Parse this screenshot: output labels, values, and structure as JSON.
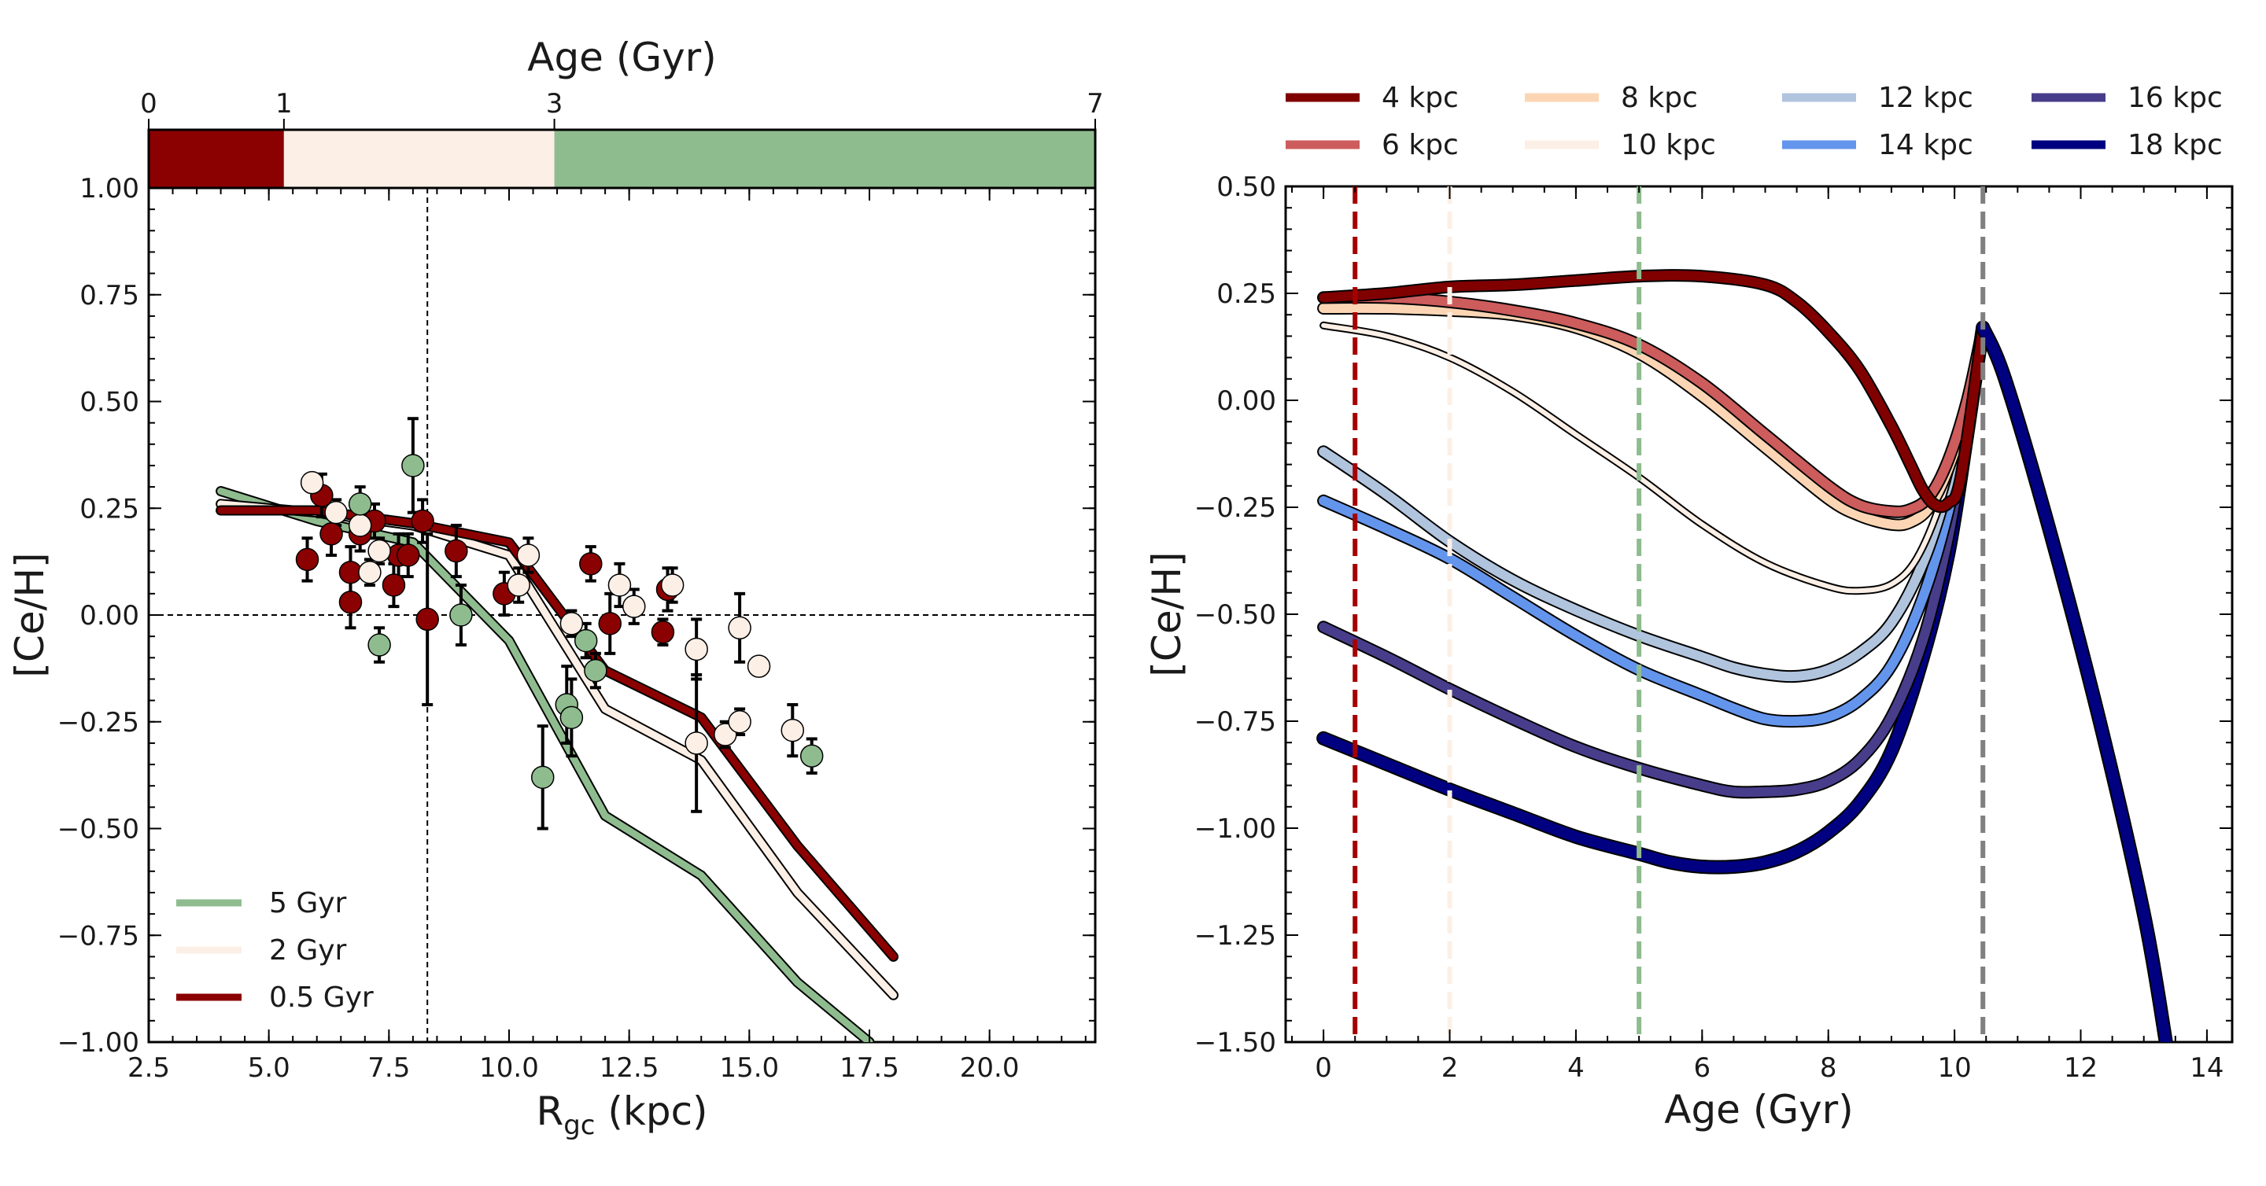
{
  "chart_data": [
    {
      "type": "line",
      "panel": "left",
      "xlabel": "R",
      "xlabel_sub": "gc",
      "xlabel_unit": " (kpc)",
      "ylabel": "[Ce/H]",
      "xlim": [
        2.5,
        22.2
      ],
      "ylim": [
        -1.0,
        1.0
      ],
      "x_ticks": [
        "2.5",
        "5.0",
        "7.5",
        "10.0",
        "12.5",
        "15.0",
        "17.5",
        "20.0"
      ],
      "y_ticks": [
        "−1.00",
        "−0.75",
        "−0.50",
        "−0.25",
        "0.00",
        "0.25",
        "0.50",
        "0.75",
        "1.00"
      ],
      "top_axis": {
        "label": "Age (Gyr)",
        "ticks": [
          "0",
          "1",
          "3",
          "7"
        ],
        "bands": [
          {
            "from": 0,
            "to": 1,
            "color": "#8b0000"
          },
          {
            "from": 1,
            "to": 3,
            "color": "#fcefe6"
          },
          {
            "from": 3,
            "to": 7,
            "color": "#8fbc8f"
          }
        ]
      },
      "reference_lines": {
        "solar_radius": 8.3,
        "zero": 0.0
      },
      "series": [
        {
          "name": "5 Gyr",
          "color": "#8fbc8f",
          "x": [
            4,
            6,
            8,
            10,
            12,
            14,
            16,
            17.5
          ],
          "y": [
            0.29,
            0.22,
            0.17,
            -0.06,
            -0.47,
            -0.61,
            -0.86,
            -1.0
          ]
        },
        {
          "name": "2 Gyr",
          "color": "#fcefe6",
          "x": [
            4,
            6,
            8,
            10,
            12,
            14,
            16,
            18
          ],
          "y": [
            0.26,
            0.24,
            0.21,
            0.14,
            -0.22,
            -0.34,
            -0.65,
            -0.89
          ]
        },
        {
          "name": "0.5 Gyr",
          "color": "#8b0000",
          "x": [
            4,
            6,
            8,
            10,
            12,
            14,
            16,
            18
          ],
          "y": [
            0.245,
            0.245,
            0.215,
            0.17,
            -0.13,
            -0.24,
            -0.54,
            -0.8
          ]
        }
      ],
      "points": [
        {
          "x": 5.8,
          "y": 0.13,
          "err": 0.05,
          "group": "red"
        },
        {
          "x": 6.1,
          "y": 0.28,
          "err": 0.05,
          "group": "red"
        },
        {
          "x": 6.3,
          "y": 0.19,
          "err": 0.05,
          "group": "red"
        },
        {
          "x": 6.7,
          "y": 0.1,
          "err": 0.06,
          "group": "red"
        },
        {
          "x": 6.7,
          "y": 0.03,
          "err": 0.06,
          "group": "red"
        },
        {
          "x": 6.9,
          "y": 0.19,
          "err": 0.04,
          "group": "red"
        },
        {
          "x": 7.2,
          "y": 0.22,
          "err": 0.04,
          "group": "red"
        },
        {
          "x": 7.6,
          "y": 0.07,
          "err": 0.05,
          "group": "red"
        },
        {
          "x": 7.7,
          "y": 0.14,
          "err": 0.05,
          "group": "red"
        },
        {
          "x": 7.9,
          "y": 0.14,
          "err": 0.05,
          "group": "red"
        },
        {
          "x": 8.2,
          "y": 0.22,
          "err": 0.05,
          "group": "red"
        },
        {
          "x": 8.3,
          "y": -0.01,
          "err": 0.2,
          "group": "red"
        },
        {
          "x": 8.9,
          "y": 0.15,
          "err": 0.06,
          "group": "red"
        },
        {
          "x": 9.9,
          "y": 0.05,
          "err": 0.05,
          "group": "red"
        },
        {
          "x": 11.7,
          "y": 0.12,
          "err": 0.04,
          "group": "red"
        },
        {
          "x": 12.1,
          "y": -0.02,
          "err": 0.07,
          "group": "red"
        },
        {
          "x": 13.2,
          "y": -0.04,
          "err": 0.03,
          "group": "red"
        },
        {
          "x": 13.3,
          "y": 0.06,
          "err": 0.05,
          "group": "red"
        },
        {
          "x": 5.9,
          "y": 0.31,
          "err": 0.02,
          "group": "cream"
        },
        {
          "x": 6.4,
          "y": 0.24,
          "err": 0.03,
          "group": "cream"
        },
        {
          "x": 6.9,
          "y": 0.21,
          "err": 0.03,
          "group": "cream"
        },
        {
          "x": 7.1,
          "y": 0.1,
          "err": 0.03,
          "group": "cream"
        },
        {
          "x": 7.3,
          "y": 0.15,
          "err": 0.03,
          "group": "cream"
        },
        {
          "x": 10.2,
          "y": 0.07,
          "err": 0.04,
          "group": "cream"
        },
        {
          "x": 10.4,
          "y": 0.14,
          "err": 0.04,
          "group": "cream"
        },
        {
          "x": 11.3,
          "y": -0.02,
          "err": 0.03,
          "group": "cream"
        },
        {
          "x": 12.3,
          "y": 0.07,
          "err": 0.05,
          "group": "cream"
        },
        {
          "x": 12.6,
          "y": 0.02,
          "err": 0.04,
          "group": "cream"
        },
        {
          "x": 13.4,
          "y": 0.07,
          "err": 0.04,
          "group": "cream"
        },
        {
          "x": 13.9,
          "y": -0.08,
          "err": 0.07,
          "group": "cream"
        },
        {
          "x": 13.9,
          "y": -0.3,
          "err": 0.16,
          "group": "cream"
        },
        {
          "x": 14.5,
          "y": -0.28,
          "err": 0.03,
          "group": "cream"
        },
        {
          "x": 14.8,
          "y": -0.03,
          "err": 0.08,
          "group": "cream"
        },
        {
          "x": 14.8,
          "y": -0.25,
          "err": 0.03,
          "group": "cream"
        },
        {
          "x": 15.2,
          "y": -0.12,
          "err": 0.02,
          "group": "cream"
        },
        {
          "x": 15.9,
          "y": -0.27,
          "err": 0.06,
          "group": "cream"
        },
        {
          "x": 6.9,
          "y": 0.26,
          "err": 0.04,
          "group": "green"
        },
        {
          "x": 7.3,
          "y": -0.07,
          "err": 0.04,
          "group": "green"
        },
        {
          "x": 8.0,
          "y": 0.35,
          "err": 0.11,
          "group": "green"
        },
        {
          "x": 9.0,
          "y": 0.0,
          "err": 0.07,
          "group": "green"
        },
        {
          "x": 10.7,
          "y": -0.38,
          "err": 0.12,
          "group": "green"
        },
        {
          "x": 11.2,
          "y": -0.21,
          "err": 0.09,
          "group": "green"
        },
        {
          "x": 11.3,
          "y": -0.24,
          "err": 0.09,
          "group": "green"
        },
        {
          "x": 11.6,
          "y": -0.06,
          "err": 0.04,
          "group": "green"
        },
        {
          "x": 11.8,
          "y": -0.13,
          "err": 0.04,
          "group": "green"
        },
        {
          "x": 16.3,
          "y": -0.33,
          "err": 0.04,
          "group": "green"
        }
      ],
      "legend": [
        "5 Gyr",
        "2 Gyr",
        "0.5 Gyr"
      ]
    },
    {
      "type": "line",
      "panel": "right",
      "xlabel": "Age (Gyr)",
      "ylabel": "[Ce/H]",
      "xlim": [
        -0.6,
        14.4
      ],
      "ylim": [
        -1.5,
        0.5
      ],
      "x_ticks": [
        "0",
        "2",
        "4",
        "6",
        "8",
        "10",
        "12",
        "14"
      ],
      "y_ticks": [
        "−1.50",
        "−1.25",
        "−1.00",
        "−0.75",
        "−0.50",
        "−0.25",
        "0.00",
        "0.25",
        "0.50"
      ],
      "vertical_lines": [
        {
          "x": 0.5,
          "color": "#a50000"
        },
        {
          "x": 2.0,
          "color": "#fcefe6"
        },
        {
          "x": 5.0,
          "color": "#8fbc8f"
        },
        {
          "x": 10.45,
          "color": "#808080"
        }
      ],
      "peak": {
        "x": 10.45,
        "y": 0.17
      },
      "common_tail": {
        "x": [
          10.45,
          10.8,
          11.5,
          12.3,
          13.0,
          13.35
        ],
        "y": [
          0.17,
          0.05,
          -0.3,
          -0.75,
          -1.2,
          -1.5
        ]
      },
      "series": [
        {
          "name": "4 kpc",
          "color": "#800000",
          "width": 12,
          "x": [
            0,
            1,
            2,
            3,
            4,
            5,
            6,
            7,
            7.5,
            8,
            8.5,
            9,
            9.3,
            9.5,
            9.7,
            9.9,
            10.1
          ],
          "y": [
            0.24,
            0.25,
            0.265,
            0.27,
            0.28,
            0.29,
            0.29,
            0.27,
            0.23,
            0.16,
            0.07,
            -0.06,
            -0.15,
            -0.21,
            -0.245,
            -0.24,
            -0.18
          ]
        },
        {
          "name": "6 kpc",
          "color": "#cd5c5c",
          "width": 12,
          "x": [
            0,
            1,
            2,
            3,
            4,
            5,
            6,
            7,
            8,
            8.5,
            9,
            9.3,
            9.6,
            9.9,
            10.2
          ],
          "y": [
            0.24,
            0.24,
            0.23,
            0.21,
            0.18,
            0.13,
            0.04,
            -0.08,
            -0.2,
            -0.245,
            -0.26,
            -0.255,
            -0.225,
            -0.14,
            0.0
          ]
        },
        {
          "name": "8 kpc",
          "color": "#fcd6b4",
          "width": 12,
          "x": [
            0,
            1,
            2,
            3,
            4,
            5,
            6,
            7,
            8,
            8.5,
            9,
            9.3,
            9.6,
            9.9,
            10.2
          ],
          "y": [
            0.215,
            0.215,
            0.21,
            0.2,
            0.17,
            0.11,
            0.01,
            -0.11,
            -0.23,
            -0.27,
            -0.29,
            -0.285,
            -0.25,
            -0.16,
            -0.02
          ]
        },
        {
          "name": "10 kpc",
          "color": "#fcefe6",
          "width": 6,
          "x": [
            0,
            1,
            2,
            3,
            4,
            5,
            6,
            7,
            8,
            8.5,
            9,
            9.4,
            9.8,
            10.1,
            10.35
          ],
          "y": [
            0.175,
            0.15,
            0.1,
            0.02,
            -0.08,
            -0.18,
            -0.29,
            -0.38,
            -0.435,
            -0.445,
            -0.43,
            -0.37,
            -0.23,
            -0.06,
            0.1
          ]
        },
        {
          "name": "12 kpc",
          "color": "#b0c4de",
          "width": 12,
          "x": [
            0,
            1,
            2,
            3,
            4,
            5,
            6,
            6.5,
            7,
            7.5,
            8,
            8.5,
            9,
            9.5,
            9.9,
            10.2,
            10.4
          ],
          "y": [
            -0.12,
            -0.22,
            -0.33,
            -0.42,
            -0.49,
            -0.55,
            -0.6,
            -0.625,
            -0.64,
            -0.645,
            -0.63,
            -0.59,
            -0.52,
            -0.38,
            -0.2,
            -0.02,
            0.12
          ]
        },
        {
          "name": "14 kpc",
          "color": "#6495ed",
          "width": 12,
          "x": [
            0,
            1,
            2,
            3,
            4,
            5,
            6,
            6.5,
            7,
            7.5,
            8,
            8.5,
            9,
            9.5,
            9.9,
            10.2,
            10.4
          ],
          "y": [
            -0.235,
            -0.3,
            -0.37,
            -0.46,
            -0.55,
            -0.63,
            -0.69,
            -0.72,
            -0.745,
            -0.75,
            -0.74,
            -0.7,
            -0.62,
            -0.46,
            -0.26,
            -0.04,
            0.12
          ]
        },
        {
          "name": "16 kpc",
          "color": "#483d8b",
          "width": 12,
          "x": [
            0,
            1,
            2,
            3,
            4,
            5,
            6,
            6.5,
            7,
            7.5,
            8,
            8.5,
            9,
            9.5,
            9.9,
            10.2,
            10.4
          ],
          "y": [
            -0.53,
            -0.6,
            -0.675,
            -0.745,
            -0.81,
            -0.86,
            -0.9,
            -0.915,
            -0.915,
            -0.91,
            -0.89,
            -0.84,
            -0.74,
            -0.56,
            -0.32,
            -0.06,
            0.12
          ]
        },
        {
          "name": "18 kpc",
          "color": "#000080",
          "width": 14,
          "x": [
            0,
            1,
            2,
            3,
            4,
            5,
            5.5,
            6,
            6.5,
            7,
            7.5,
            8,
            8.5,
            9,
            9.5,
            9.9,
            10.2,
            10.4
          ],
          "y": [
            -0.79,
            -0.85,
            -0.91,
            -0.965,
            -1.02,
            -1.06,
            -1.08,
            -1.09,
            -1.09,
            -1.08,
            -1.055,
            -1.01,
            -0.94,
            -0.82,
            -0.6,
            -0.36,
            -0.08,
            0.12
          ]
        }
      ],
      "legend": [
        "4 kpc",
        "8 kpc",
        "12 kpc",
        "16 kpc",
        "6 kpc",
        "10 kpc",
        "14 kpc",
        "18 kpc"
      ]
    }
  ]
}
